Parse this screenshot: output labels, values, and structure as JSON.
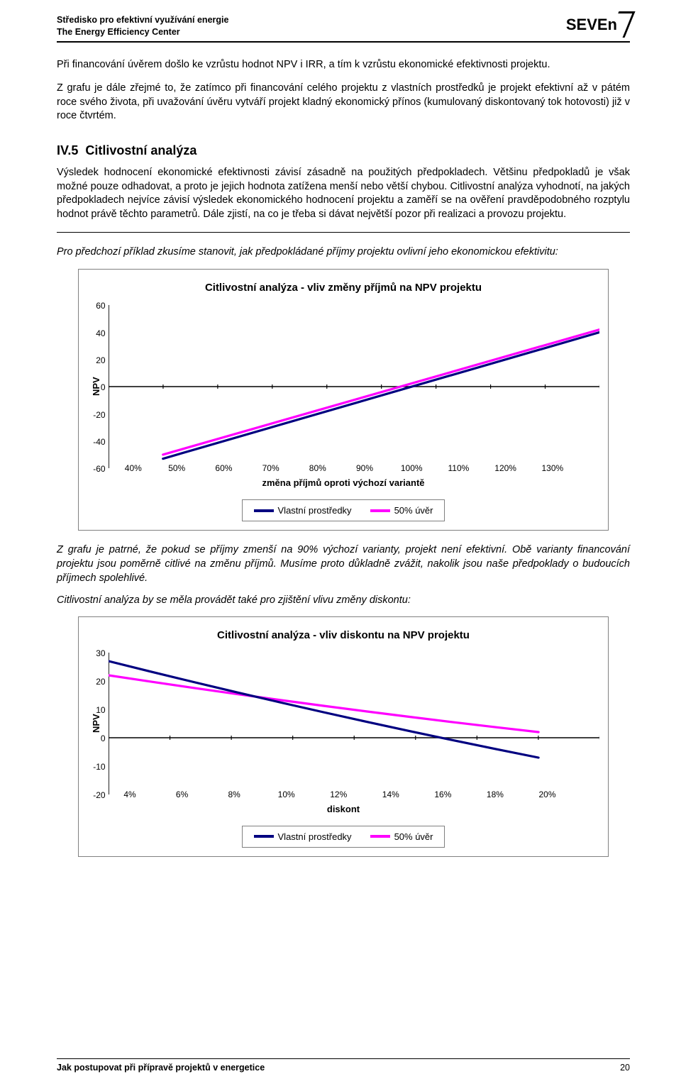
{
  "header": {
    "org_cs": "Středisko pro efektivní využívání energie",
    "org_en": "The Energy Efficiency Center",
    "logo": "SEVEn"
  },
  "para1": "Při financování úvěrem došlo ke vzrůstu hodnot NPV i IRR,  a tím k vzrůstu ekonomické efektivnosti projektu.",
  "para2": "Z grafu je dále zřejmé to, že zatímco při financování celého projektu z vlastních prostředků je projekt efektivní až v pátém roce svého života, při uvažování úvěru vytváří projekt kladný ekonomický přínos  (kumulovaný diskontovaný tok hotovosti) již v roce čtvrtém.",
  "section": {
    "num": "IV.5",
    "title": "Citlivostní analýza"
  },
  "para3": "Výsledek hodnocení ekonomické efektivnosti závisí zásadně na použitých předpokladech. Většinu předpokladů je však možné pouze odhadovat, a proto je jejich hodnota zatížena menší nebo větší chybou. Citlivostní analýza vyhodnotí, na jakých předpokladech nejvíce závisí výsledek ekonomického hodnocení projektu a zaměří se na ověření pravděpodobného rozptylu hodnot právě těchto parametrů. Dále zjistí,  na co je třeba si dávat největší pozor při realizaci a provozu  projektu.",
  "example_intro": "Pro předchozí příklad zkusíme stanovit, jak předpokládané příjmy projektu ovlivní jeho ekonomickou efektivitu:",
  "chart1": {
    "title": "Citlivostní analýza - vliv změny příjmů na NPV projektu",
    "ylabel": "NPV",
    "ymin": -60,
    "ymax": 60,
    "yticks": [
      60,
      40,
      20,
      0,
      -20,
      -40,
      -60
    ],
    "xticks": [
      "40%",
      "50%",
      "60%",
      "70%",
      "80%",
      "90%",
      "100%",
      "110%",
      "120%",
      "130%"
    ],
    "xlabel": "změna příjmů oproti výchozí variantě",
    "series1": {
      "label": "Vlastní prostředky",
      "color": "#000080",
      "width": 3.2,
      "x": [
        50,
        130
      ],
      "y": [
        -53,
        40
      ]
    },
    "series2": {
      "label": "50% úvěr",
      "color": "#ff00ff",
      "width": 3.2,
      "x": [
        50,
        130
      ],
      "y": [
        -50,
        42
      ]
    },
    "axis_color": "#000000",
    "grid_color": "#000000"
  },
  "para4": "Z grafu je patrné, že pokud se příjmy zmenší na 90% výchozí varianty, projekt není efektivní. Obě varianty financování projektu jsou poměrně citlivé na změnu příjmů. Musíme proto důkladně zvážit, nakolik jsou naše předpoklady o budoucích příjmech spolehlivé.",
  "para5": "Citlivostní analýza by se měla provádět také pro zjištění vlivu změny diskontu:",
  "chart2": {
    "title": "Citlivostní analýza - vliv diskontu na NPV projektu",
    "ylabel": "NPV",
    "ymin": -20,
    "ymax": 30,
    "yticks": [
      30,
      20,
      10,
      0,
      -10,
      -20
    ],
    "xticks": [
      "4%",
      "6%",
      "8%",
      "10%",
      "12%",
      "14%",
      "16%",
      "18%",
      "20%"
    ],
    "xlabel": "diskont",
    "series1": {
      "label": "Vlastní prostředky",
      "color": "#000080",
      "width": 3.2,
      "x": [
        4,
        18
      ],
      "y": [
        27,
        -7
      ]
    },
    "series2": {
      "label": "50% úvěr",
      "color": "#ff00ff",
      "width": 3.2,
      "x": [
        4,
        18
      ],
      "y": [
        22,
        2
      ]
    },
    "axis_color": "#000000"
  },
  "legend": {
    "s1": "Vlastní prostředky",
    "s2": "50% úvěr",
    "c1": "#000080",
    "c2": "#ff00ff"
  },
  "footer": {
    "left": "Jak postupovat při přípravě projektů v energetice",
    "page": "20"
  }
}
